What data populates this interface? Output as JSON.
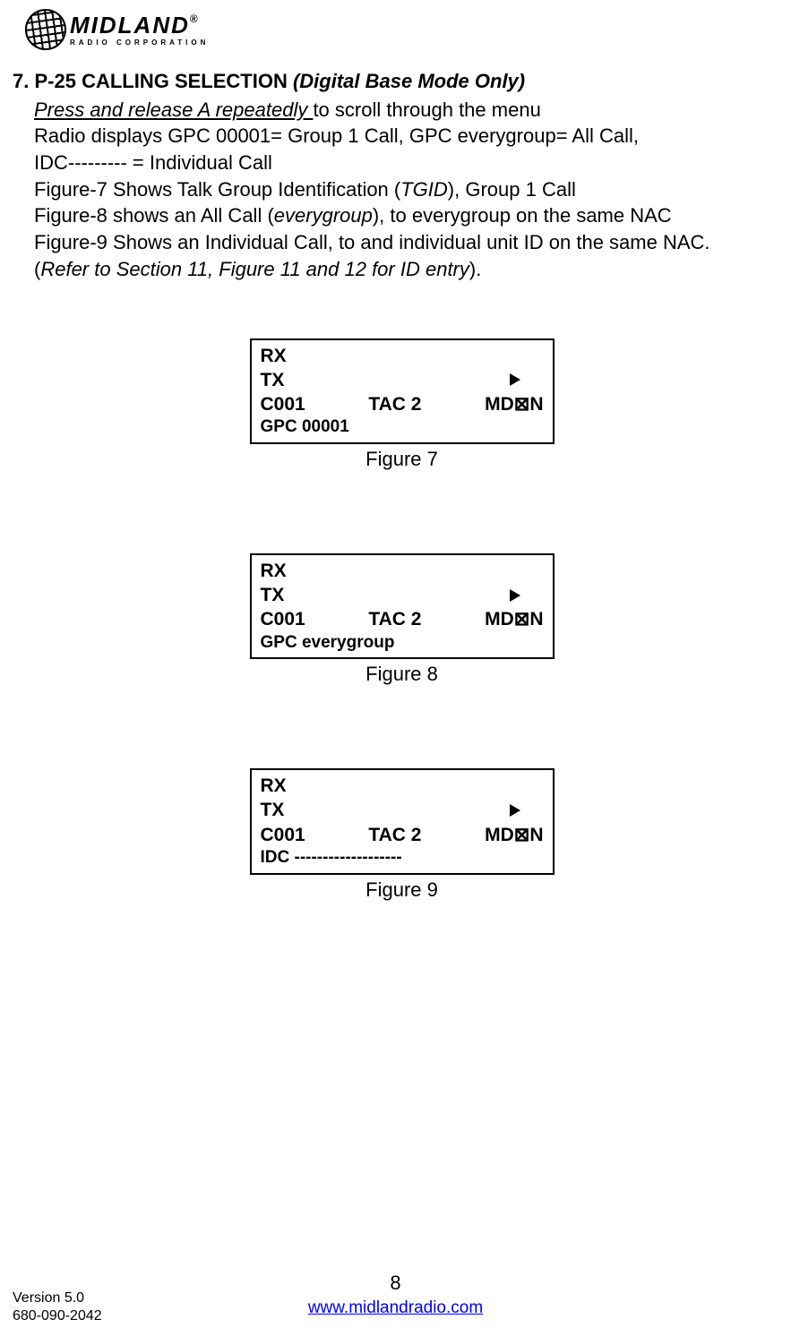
{
  "logo": {
    "main": "MIDLAND",
    "reg": "®",
    "sub": "RADIO CORPORATION"
  },
  "section": {
    "num": "7.",
    "title_bold": "P-25 CALLING SELECTION",
    "title_ital": "(Digital Base Mode Only)"
  },
  "lines": {
    "l1a": "Press and release A repeatedly ",
    "l1b": "to scroll through the menu",
    "l2": "Radio displays GPC 00001= Group 1 Call, GPC everygroup= All Call,",
    "l3": "IDC--------- = Individual Call",
    "l4a": "Figure-7 Shows Talk Group Identification (",
    "l4b": "TGID",
    "l4c": "), Group 1 Call",
    "l5a": "Figure-8 shows an All Call (",
    "l5b": "everygroup",
    "l5c": "), to everygroup on the same NAC",
    "l6": "Figure-9 Shows an Individual Call, to and individual unit ID on the same NAC.",
    "l7a": "(",
    "l7b": "Refer to Section 11, Figure 11 and 12 for ID entry",
    "l7c": ")."
  },
  "fig7": {
    "rx": "RX",
    "tx": "TX",
    "c": "C001",
    "tac": "TAC 2",
    "md": "MD⊠N",
    "gpc": "GPC 00001",
    "caption": "Figure 7"
  },
  "fig8": {
    "rx": "RX",
    "tx": "TX",
    "c": "C001",
    "tac": "TAC 2",
    "md": "MD⊠N",
    "gpc": "GPC everygroup",
    "caption": "Figure 8"
  },
  "fig9": {
    "rx": "RX",
    "tx": "TX",
    "c": "C001",
    "tac": "TAC 2",
    "md": "MD⊠N",
    "gpc": "IDC  -------------------",
    "caption": "Figure 9"
  },
  "footer": {
    "pagenum": "8",
    "url": "www.midlandradio.com"
  },
  "version": {
    "v": "Version 5.0",
    "pn": "680-090-2042"
  }
}
